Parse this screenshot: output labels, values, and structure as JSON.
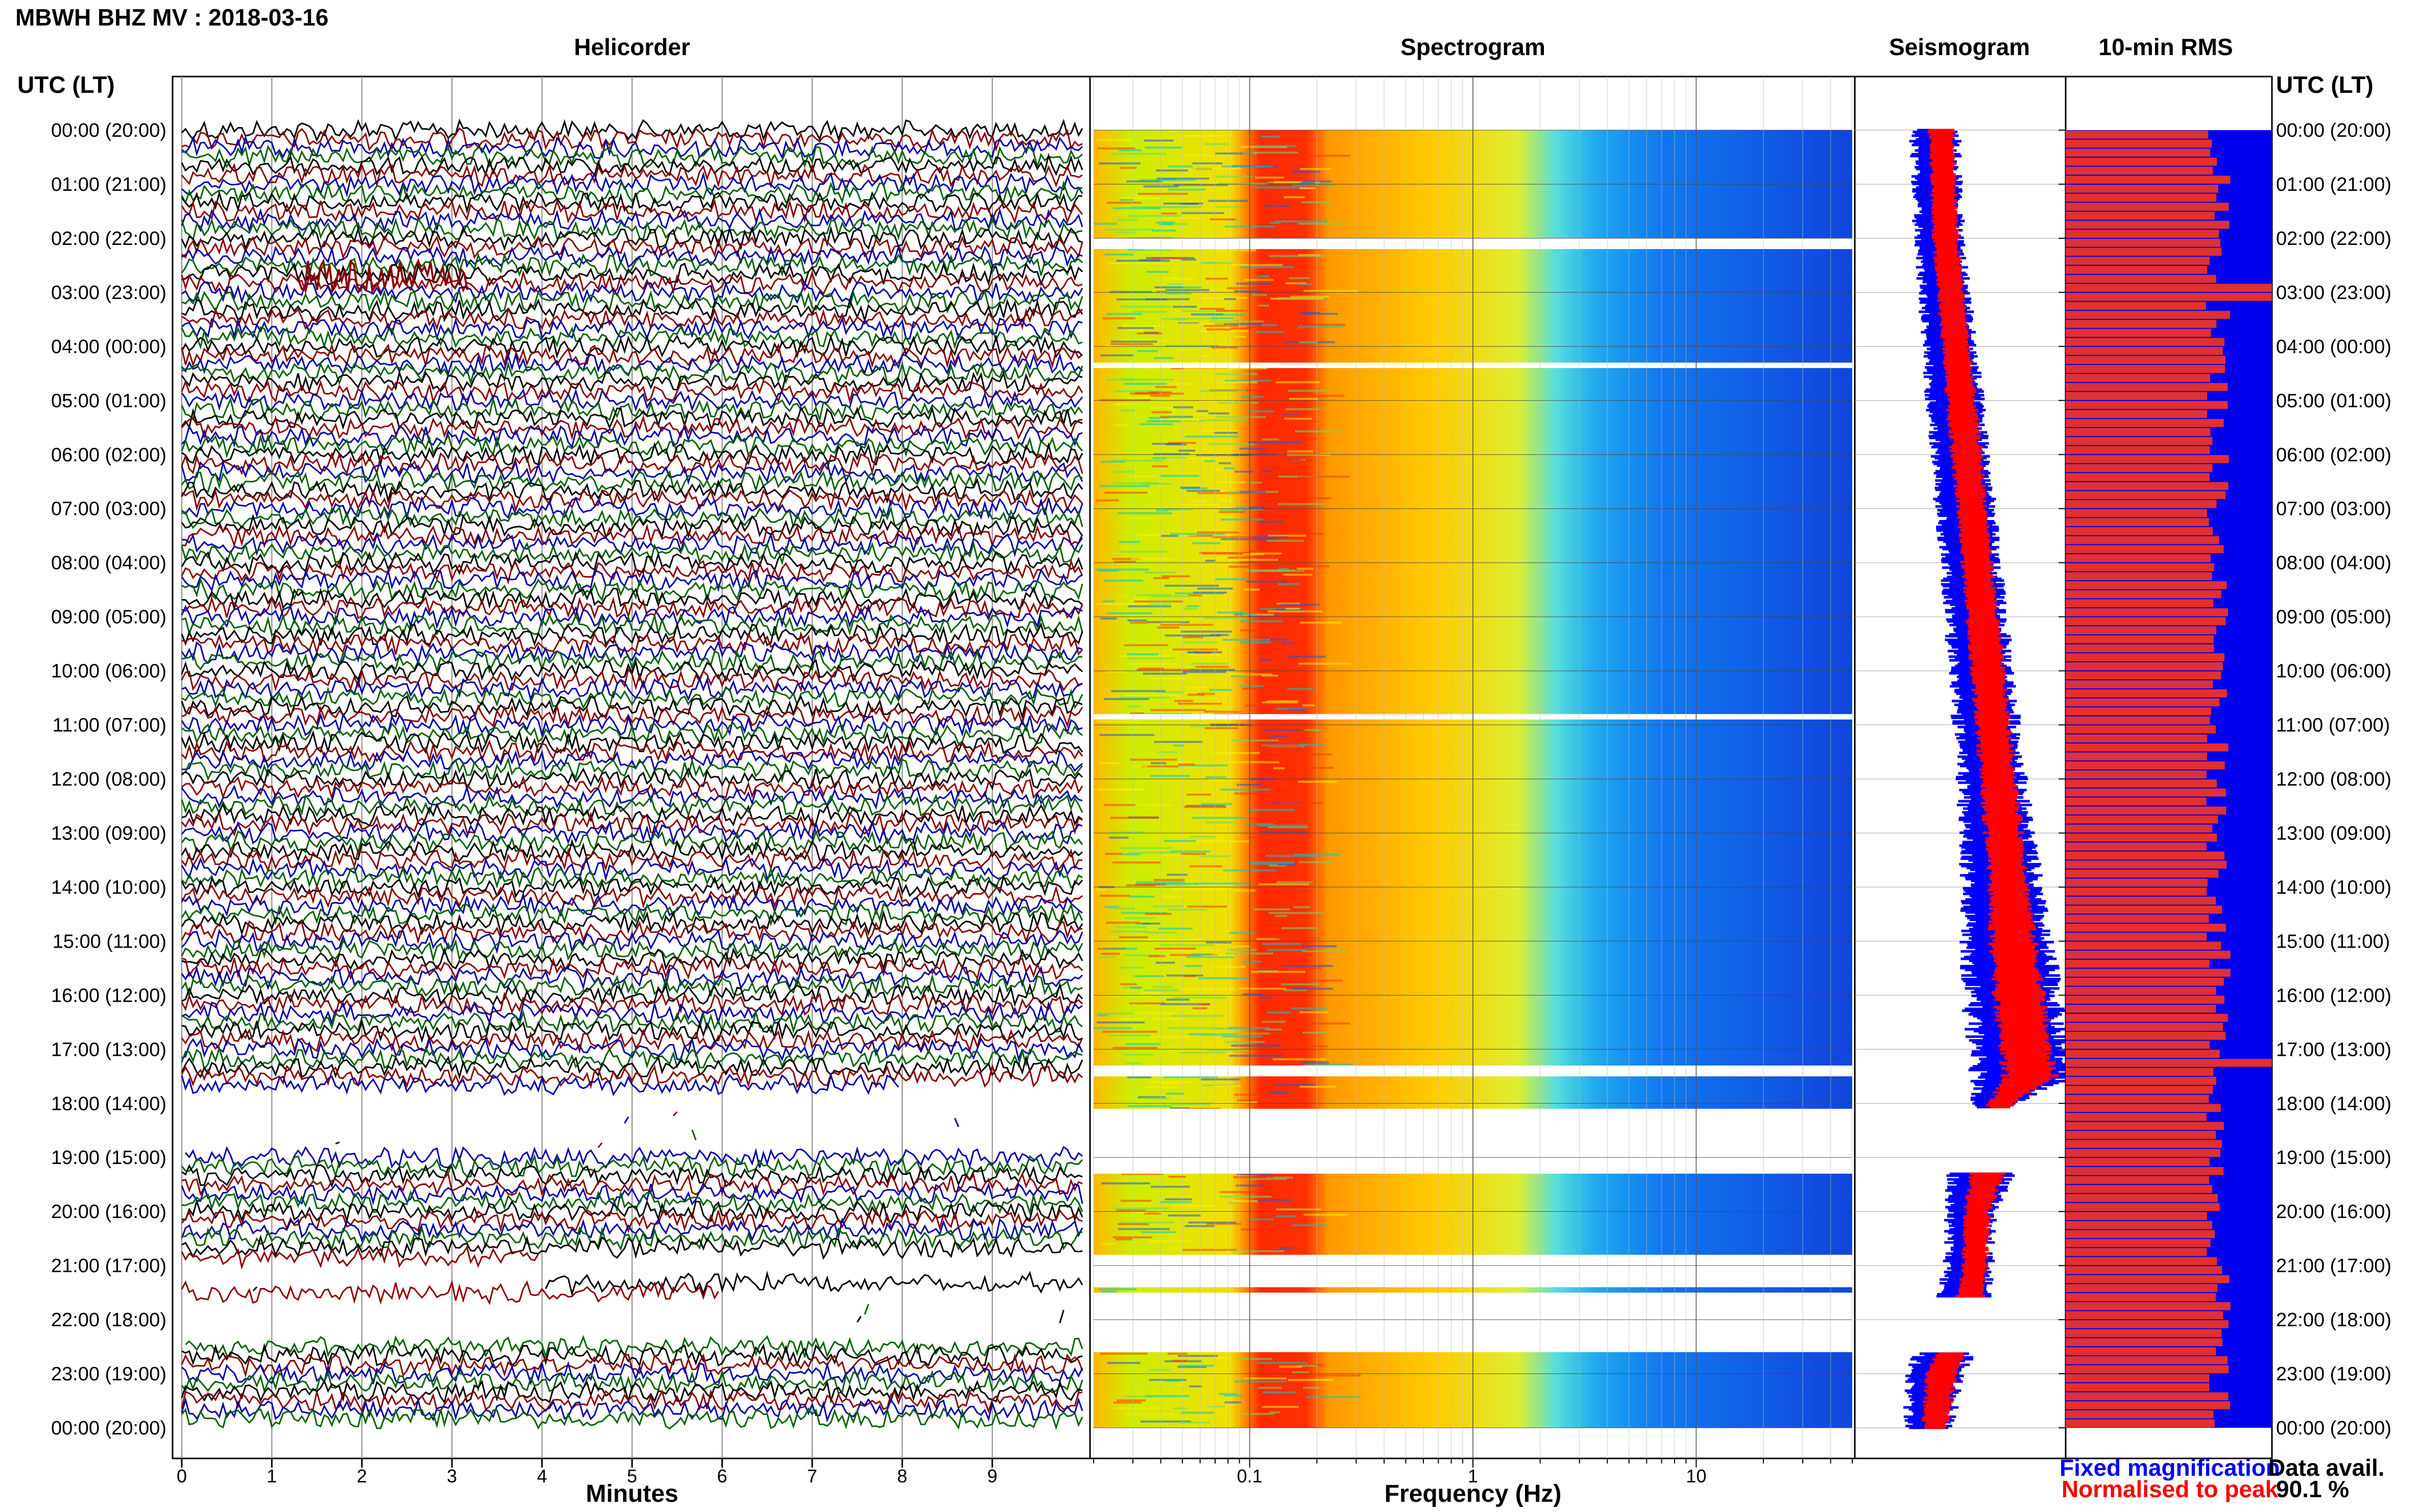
{
  "header": {
    "station_title": "MBWH BHZ MV : 2018-03-16",
    "utc_label_left": "UTC (LT)",
    "utc_label_right": "UTC (LT)"
  },
  "panels": {
    "helicorder": "Helicorder",
    "spectrogram": "Spectrogram",
    "seismogram": "Seismogram",
    "rms": "10-min RMS"
  },
  "legend": {
    "fixed": "Fixed magnification",
    "normalised": "Normalised to peak",
    "fixed_color": "#0000ff",
    "normalised_color": "#ff0000"
  },
  "data_availability": {
    "label": "Data avail.",
    "value": "90.1 %"
  },
  "time_labels": [
    "00:00 (20:00)",
    "01:00 (21:00)",
    "02:00 (22:00)",
    "03:00 (23:00)",
    "04:00 (00:00)",
    "05:00 (01:00)",
    "06:00 (02:00)",
    "07:00 (03:00)",
    "08:00 (04:00)",
    "09:00 (05:00)",
    "10:00 (06:00)",
    "11:00 (07:00)",
    "12:00 (08:00)",
    "13:00 (09:00)",
    "14:00 (10:00)",
    "15:00 (11:00)",
    "16:00 (12:00)",
    "17:00 (13:00)",
    "18:00 (14:00)",
    "19:00 (15:00)",
    "20:00 (16:00)",
    "21:00 (17:00)",
    "22:00 (18:00)",
    "23:00 (19:00)",
    "00:00 (20:00)"
  ],
  "chart_data": [
    {
      "type": "heatmap",
      "name": "Helicorder",
      "xlabel": "Minutes",
      "x_ticks": [
        "0",
        "1",
        "2",
        "3",
        "4",
        "5",
        "6",
        "7",
        "8",
        "9"
      ],
      "xlim": [
        0,
        10
      ],
      "trace_colors": [
        "#000000",
        "#8b0000",
        "#0000aa",
        "#006400"
      ],
      "gaps_utc_hours": [
        [
          17.8,
          19.0
        ],
        [
          20.9,
          21.4
        ],
        [
          21.6,
          22.5
        ]
      ]
    },
    {
      "type": "heatmap",
      "name": "Spectrogram",
      "xlabel": "Frequency (Hz)",
      "x_scale": "log",
      "x_ticks": [
        "0.1",
        "1",
        "10"
      ],
      "xlim": [
        0.02,
        50
      ],
      "dominant_band_hz": [
        0.15,
        0.25
      ],
      "colormap": [
        "#0000cc",
        "#0088ff",
        "#00dddd",
        "#ccee00",
        "#ffaa00",
        "#ff2200"
      ],
      "gaps_utc_hours": [
        [
          2.0,
          2.2
        ],
        [
          4.3,
          4.4
        ],
        [
          10.8,
          10.9
        ],
        [
          17.3,
          17.5
        ],
        [
          18.1,
          19.3
        ],
        [
          20.8,
          21.4
        ],
        [
          21.5,
          22.6
        ]
      ]
    },
    {
      "type": "line",
      "name": "Seismogram",
      "series": [
        {
          "name": "Fixed magnification",
          "color": "#0000ff"
        },
        {
          "name": "Normalised to peak",
          "color": "#ff0000"
        }
      ],
      "x_utc_hours": [
        0,
        2,
        4,
        6,
        8,
        10,
        12,
        14,
        15,
        16,
        17,
        17.5,
        18,
        19,
        20,
        21,
        22,
        23,
        24
      ],
      "envelope_center": [
        0.38,
        0.4,
        0.45,
        0.5,
        0.55,
        0.6,
        0.65,
        0.7,
        0.72,
        0.75,
        0.78,
        0.8,
        0.66,
        0.62,
        0.55,
        0.54,
        0.5,
        0.38,
        0.35
      ],
      "envelope_halfwidth": [
        0.1,
        0.1,
        0.11,
        0.12,
        0.12,
        0.13,
        0.14,
        0.16,
        0.18,
        0.2,
        0.2,
        0.21,
        0.1,
        0.15,
        0.1,
        0.1,
        0.12,
        0.12,
        0.1
      ]
    },
    {
      "type": "bar",
      "name": "10-min RMS",
      "orientation": "horizontal",
      "bar_color": "#e03030",
      "background_color": "#0000ee",
      "bins": 144,
      "relative_rms_range": [
        0.68,
        0.8
      ],
      "peaks_utc_hours": [
        3.0,
        17.3
      ]
    }
  ]
}
